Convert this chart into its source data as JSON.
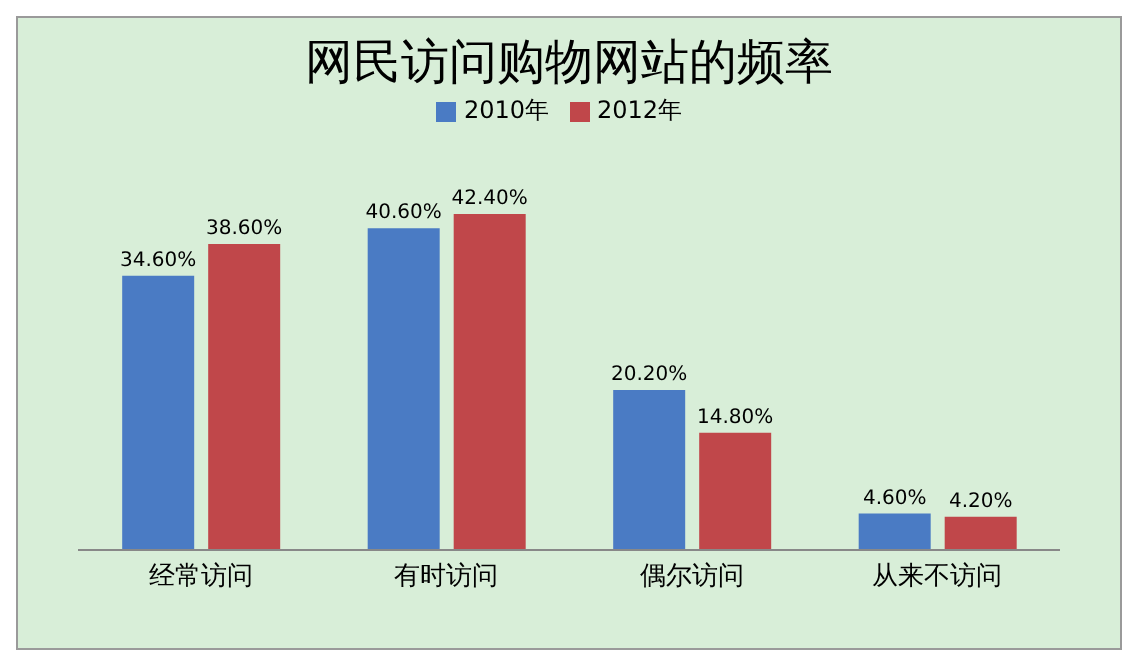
{
  "chart_data": {
    "type": "bar",
    "title": "网民访问购物网站的频率",
    "categories": [
      "经常访问",
      "有时访问",
      "偶尔访问",
      "从来不访问"
    ],
    "series": [
      {
        "name": "2010年",
        "color": "#4a7bc4",
        "values": [
          34.6,
          40.6,
          20.2,
          4.6
        ],
        "value_labels": [
          "34.60%",
          "40.60%",
          "20.20%",
          "4.60%"
        ]
      },
      {
        "name": "2012年",
        "color": "#c0474a",
        "values": [
          38.6,
          42.4,
          14.8,
          4.2
        ],
        "value_labels": [
          "38.60%",
          "42.40%",
          "14.80%",
          "4.20%"
        ]
      }
    ],
    "legend": "top",
    "tick_labels": "x",
    "grid": false
  }
}
